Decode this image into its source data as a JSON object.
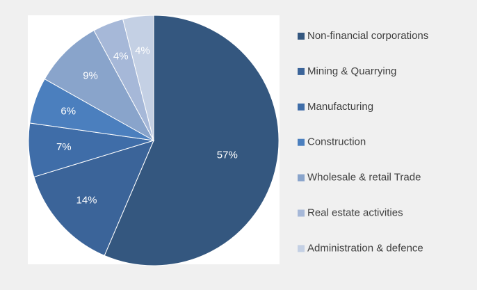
{
  "chart_data": {
    "type": "pie",
    "categories": [
      "Non-financial corporations",
      "Mining & Quarrying",
      "Manufacturing",
      "Construction",
      "Wholesale & retail Trade",
      "Real estate activities",
      "Administration & defence"
    ],
    "values": [
      57,
      14,
      7,
      6,
      9,
      4,
      4
    ],
    "value_labels": [
      "57%",
      "14%",
      "7%",
      "6%",
      "9%",
      "4%",
      "4%"
    ],
    "colors": [
      "#34577f",
      "#3b6499",
      "#3f6da8",
      "#4b7fbe",
      "#89a4cb",
      "#a6b8d8",
      "#c4d0e4"
    ],
    "legend": "right"
  }
}
